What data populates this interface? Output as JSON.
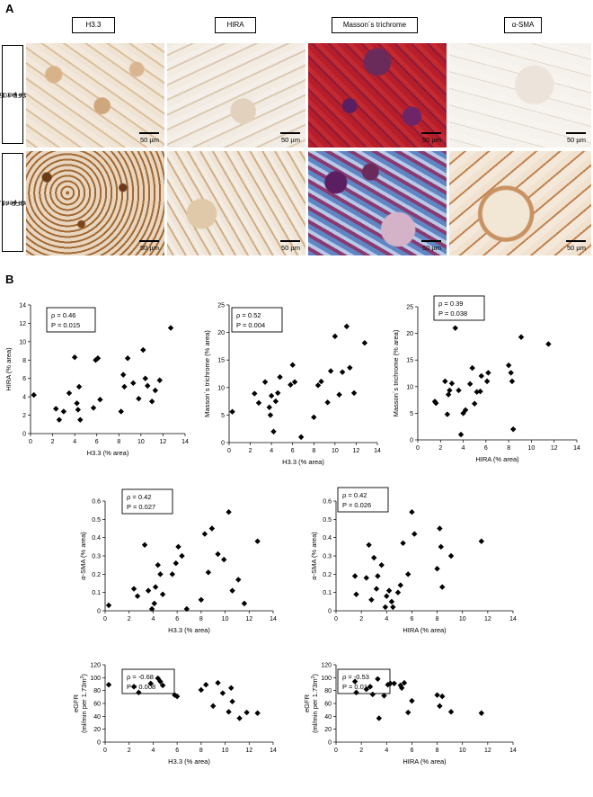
{
  "figure": {
    "panel_a_label": "A",
    "panel_b_label": "B",
    "columns": [
      "H3.3",
      "HIRA",
      "Masson´s trichrome",
      "α-SMA"
    ],
    "rows": [
      {
        "line1": "eGFR 105.7",
        "line2": "ml/min per 1.73m",
        "sup": "2"
      },
      {
        "line1": "eGFR 46.0",
        "line2": "ml/min per 1.73m",
        "sup": "2"
      }
    ],
    "scale_bar_label": "50 µm",
    "colors": {
      "dab_light": "#ece2d4",
      "dab_stain": "#a26a33",
      "dab_dark": "#6b3a16",
      "trichrome_red": "#b51e2a",
      "trichrome_purple": "#5b1e60",
      "trichrome_blue": "#5f86c4",
      "marker": "#000000"
    }
  },
  "chart_data": [
    {
      "type": "scatter",
      "xlabel": "H3.3 (% area)",
      "ylabel": "HIRA (% area)",
      "xlim": [
        0,
        14
      ],
      "ylim": [
        0,
        14
      ],
      "xticks": [
        0,
        2,
        4,
        6,
        8,
        10,
        12,
        14
      ],
      "yticks": [
        0,
        2,
        4,
        6,
        8,
        10,
        12,
        14
      ],
      "rho": "ρ = 0.46",
      "p": "P = 0.015",
      "points": [
        [
          0.3,
          4.2
        ],
        [
          2.3,
          2.7
        ],
        [
          2.6,
          1.5
        ],
        [
          3.0,
          2.4
        ],
        [
          3.5,
          4.4
        ],
        [
          4.0,
          8.3
        ],
        [
          4.2,
          3.3
        ],
        [
          4.3,
          2.6
        ],
        [
          4.4,
          5.1
        ],
        [
          4.5,
          1.5
        ],
        [
          5.7,
          2.8
        ],
        [
          5.9,
          8.0
        ],
        [
          6.1,
          8.2
        ],
        [
          6.3,
          3.7
        ],
        [
          8.2,
          2.4
        ],
        [
          8.4,
          6.4
        ],
        [
          8.5,
          5.1
        ],
        [
          8.8,
          8.2
        ],
        [
          9.3,
          5.5
        ],
        [
          9.8,
          3.8
        ],
        [
          10.2,
          9.1
        ],
        [
          10.4,
          6.0
        ],
        [
          10.6,
          5.2
        ],
        [
          11.0,
          3.5
        ],
        [
          11.3,
          4.7
        ],
        [
          11.7,
          5.8
        ],
        [
          12.7,
          11.5
        ]
      ]
    },
    {
      "type": "scatter",
      "xlabel": "H3.3 (% area)",
      "ylabel": "Masson´s trichrome (% area)",
      "xlim": [
        0,
        14
      ],
      "ylim": [
        0,
        25
      ],
      "xticks": [
        0,
        2,
        4,
        6,
        8,
        10,
        12,
        14
      ],
      "yticks": [
        0,
        5,
        10,
        15,
        20,
        25
      ],
      "rho": "ρ = 0.52",
      "p": "P = 0.004",
      "points": [
        [
          0.3,
          5.6
        ],
        [
          2.4,
          8.9
        ],
        [
          2.8,
          7.2
        ],
        [
          3.4,
          11.0
        ],
        [
          3.8,
          6.4
        ],
        [
          3.9,
          5.0
        ],
        [
          4.0,
          8.5
        ],
        [
          4.2,
          2.0
        ],
        [
          4.4,
          7.5
        ],
        [
          4.6,
          9.0
        ],
        [
          4.8,
          11.9
        ],
        [
          5.8,
          10.5
        ],
        [
          6.0,
          14.1
        ],
        [
          6.2,
          11.0
        ],
        [
          6.8,
          1.0
        ],
        [
          8.0,
          4.6
        ],
        [
          8.4,
          10.4
        ],
        [
          8.7,
          11.1
        ],
        [
          9.3,
          7.3
        ],
        [
          9.6,
          13.0
        ],
        [
          10.0,
          19.3
        ],
        [
          10.4,
          8.7
        ],
        [
          10.7,
          12.8
        ],
        [
          11.1,
          21.1
        ],
        [
          11.4,
          13.6
        ],
        [
          11.8,
          9.0
        ],
        [
          12.8,
          18.1
        ]
      ]
    },
    {
      "type": "scatter",
      "xlabel": "HIRA (% area)",
      "ylabel": "Masson´s trichrome (% area)",
      "xlim": [
        0,
        14
      ],
      "ylim": [
        0,
        25
      ],
      "xticks": [
        0,
        2,
        4,
        6,
        8,
        10,
        12,
        14
      ],
      "yticks": [
        0,
        5,
        10,
        15,
        20,
        25
      ],
      "rho": "ρ = 0.39",
      "p": "P = 0.038",
      "points": [
        [
          1.5,
          7.2
        ],
        [
          1.6,
          6.9
        ],
        [
          2.4,
          11.0
        ],
        [
          2.6,
          4.8
        ],
        [
          2.7,
          8.5
        ],
        [
          2.8,
          9.3
        ],
        [
          3.0,
          10.6
        ],
        [
          3.3,
          21.0
        ],
        [
          3.6,
          9.3
        ],
        [
          3.8,
          1.0
        ],
        [
          4.0,
          5.0
        ],
        [
          4.2,
          5.6
        ],
        [
          4.6,
          10.5
        ],
        [
          4.8,
          13.5
        ],
        [
          5.0,
          6.8
        ],
        [
          5.2,
          9.0
        ],
        [
          5.5,
          9.1
        ],
        [
          5.6,
          12.0
        ],
        [
          6.1,
          11.0
        ],
        [
          6.2,
          12.6
        ],
        [
          8.0,
          14.0
        ],
        [
          8.2,
          12.6
        ],
        [
          8.3,
          11.0
        ],
        [
          8.4,
          2.0
        ],
        [
          9.1,
          19.3
        ],
        [
          11.5,
          18.0
        ]
      ]
    },
    {
      "type": "scatter",
      "xlabel": "H3.3 (% area)",
      "ylabel": "α-SMA (% area)",
      "xlim": [
        0,
        14
      ],
      "ylim": [
        0,
        0.6
      ],
      "xticks": [
        0,
        2,
        4,
        6,
        8,
        10,
        12,
        14
      ],
      "yticks": [
        0,
        0.1,
        0.2,
        0.3,
        0.4,
        0.5,
        0.6
      ],
      "rho": "ρ = 0.42",
      "p": "P = 0.027",
      "points": [
        [
          0.3,
          0.03
        ],
        [
          2.4,
          0.12
        ],
        [
          2.7,
          0.08
        ],
        [
          3.3,
          0.36
        ],
        [
          3.6,
          0.11
        ],
        [
          3.9,
          0.01
        ],
        [
          4.1,
          0.04
        ],
        [
          4.2,
          0.13
        ],
        [
          4.4,
          0.25
        ],
        [
          4.6,
          0.2
        ],
        [
          4.8,
          0.09
        ],
        [
          5.6,
          0.2
        ],
        [
          5.9,
          0.26
        ],
        [
          6.1,
          0.35
        ],
        [
          6.4,
          0.3
        ],
        [
          6.8,
          0.01
        ],
        [
          8.0,
          0.06
        ],
        [
          8.3,
          0.42
        ],
        [
          8.6,
          0.21
        ],
        [
          8.9,
          0.45
        ],
        [
          9.4,
          0.31
        ],
        [
          9.9,
          0.28
        ],
        [
          10.3,
          0.54
        ],
        [
          10.6,
          0.11
        ],
        [
          11.1,
          0.17
        ],
        [
          11.6,
          0.04
        ],
        [
          12.7,
          0.38
        ]
      ]
    },
    {
      "type": "scatter",
      "xlabel": "HIRA (% area)",
      "ylabel": "α-SMA (% area)",
      "xlim": [
        0,
        14
      ],
      "ylim": [
        0,
        0.6
      ],
      "xticks": [
        0,
        2,
        4,
        6,
        8,
        10,
        12,
        14
      ],
      "yticks": [
        0,
        0.1,
        0.2,
        0.3,
        0.4,
        0.5,
        0.6
      ],
      "rho": "ρ = 0.42",
      "p": "P = 0.026",
      "points": [
        [
          1.5,
          0.19
        ],
        [
          1.6,
          0.09
        ],
        [
          2.4,
          0.18
        ],
        [
          2.6,
          0.36
        ],
        [
          2.8,
          0.06
        ],
        [
          3.0,
          0.29
        ],
        [
          3.2,
          0.12
        ],
        [
          3.3,
          0.19
        ],
        [
          3.6,
          0.25
        ],
        [
          3.9,
          0.02
        ],
        [
          4.0,
          0.08
        ],
        [
          4.2,
          0.11
        ],
        [
          4.4,
          0.05
        ],
        [
          4.5,
          0.02
        ],
        [
          4.9,
          0.1
        ],
        [
          5.1,
          0.14
        ],
        [
          5.3,
          0.37
        ],
        [
          5.7,
          0.2
        ],
        [
          6.0,
          0.54
        ],
        [
          6.2,
          0.42
        ],
        [
          8.0,
          0.23
        ],
        [
          8.2,
          0.45
        ],
        [
          8.3,
          0.35
        ],
        [
          8.4,
          0.13
        ],
        [
          9.1,
          0.3
        ],
        [
          11.5,
          0.38
        ]
      ]
    },
    {
      "type": "scatter",
      "xlabel": "H3.3 (% area)",
      "ylabel": "eGFR",
      "ylabel2": "(ml/min per 1.73m",
      "ylabel_sup": "2",
      "ylabel_end": ")",
      "xlim": [
        0,
        14
      ],
      "ylim": [
        0,
        120
      ],
      "xticks": [
        0,
        2,
        4,
        6,
        8,
        10,
        12,
        14
      ],
      "yticks": [
        0,
        20,
        40,
        60,
        80,
        100,
        120
      ],
      "rho": "ρ = -0.68",
      "p": "P = 0.008",
      "points": [
        [
          0.3,
          89
        ],
        [
          2.4,
          86
        ],
        [
          2.8,
          77
        ],
        [
          3.8,
          91
        ],
        [
          4.4,
          99
        ],
        [
          4.6,
          94
        ],
        [
          4.8,
          88
        ],
        [
          5.8,
          73
        ],
        [
          6.0,
          71
        ],
        [
          8.0,
          81
        ],
        [
          8.4,
          89
        ],
        [
          9.0,
          56
        ],
        [
          9.4,
          92
        ],
        [
          9.8,
          76
        ],
        [
          10.3,
          47
        ],
        [
          10.5,
          84
        ],
        [
          10.6,
          63
        ],
        [
          11.2,
          37
        ],
        [
          11.8,
          46
        ],
        [
          12.7,
          45
        ]
      ]
    },
    {
      "type": "scatter",
      "xlabel": "HIRA (% area)",
      "ylabel": "eGFR",
      "ylabel2": "(ml/min per 1.73m",
      "ylabel_sup": "2",
      "ylabel_end": ")",
      "xlim": [
        0,
        14
      ],
      "ylim": [
        0,
        120
      ],
      "xticks": [
        0,
        2,
        4,
        6,
        8,
        10,
        12,
        14
      ],
      "yticks": [
        0,
        20,
        40,
        60,
        80,
        100,
        120
      ],
      "rho": "ρ = -0.53",
      "p": "P = 0.014",
      "points": [
        [
          1.5,
          94
        ],
        [
          1.6,
          77
        ],
        [
          2.4,
          82
        ],
        [
          2.7,
          86
        ],
        [
          2.9,
          74
        ],
        [
          3.3,
          98
        ],
        [
          3.4,
          37
        ],
        [
          3.8,
          72
        ],
        [
          4.1,
          89
        ],
        [
          4.3,
          91
        ],
        [
          4.6,
          91
        ],
        [
          5.1,
          88
        ],
        [
          5.2,
          84
        ],
        [
          5.4,
          92
        ],
        [
          5.7,
          46
        ],
        [
          6.0,
          64
        ],
        [
          8.0,
          73
        ],
        [
          8.2,
          56
        ],
        [
          8.4,
          71
        ],
        [
          9.1,
          47
        ],
        [
          11.5,
          45
        ]
      ]
    }
  ]
}
